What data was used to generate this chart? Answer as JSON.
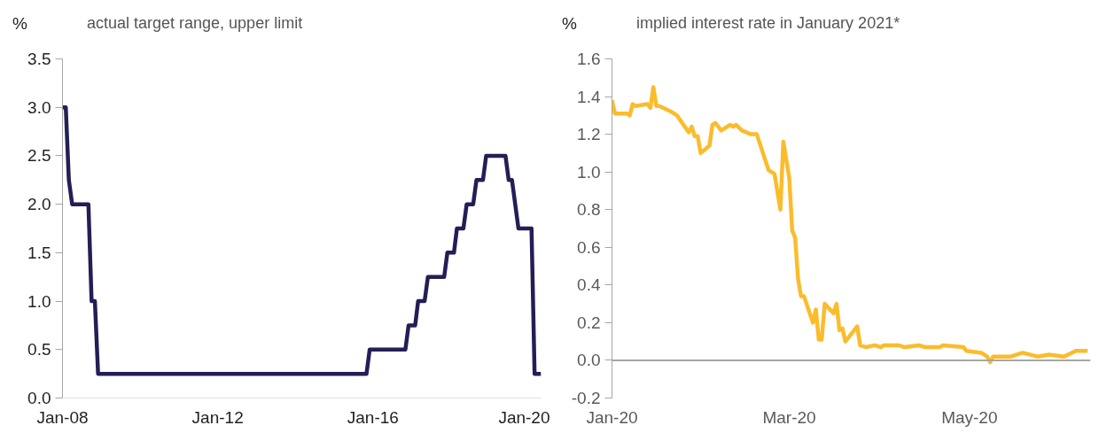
{
  "chart_data": [
    {
      "type": "line",
      "title": "actual target range, upper limit",
      "ylabel": "%",
      "grid": false,
      "xlim": [
        "2008-01",
        "2020-05"
      ],
      "ylim": [
        0,
        3.5
      ],
      "yticks": [
        {
          "value": 0,
          "label": "0.0"
        },
        {
          "value": 0.5,
          "label": "0.5"
        },
        {
          "value": 1,
          "label": "1.0"
        },
        1.5,
        {
          "value": 2,
          "label": "2.0"
        },
        2.5,
        {
          "value": 3,
          "label": "3.0"
        },
        3.5
      ],
      "xticks": [
        {
          "value": "2008-01",
          "label": "Jan-08"
        },
        {
          "value": "2012-01",
          "label": "Jan-12"
        },
        {
          "value": "2016-01",
          "label": "Jan-16"
        },
        {
          "value": "2020-01",
          "label": "Jan-20"
        }
      ],
      "series": [
        {
          "color": "#231f55",
          "x": [
            "2008-01",
            "2008-02",
            "2008-03",
            "2008-04",
            "2008-09",
            "2008-10",
            "2008-11",
            "2008-12",
            "2015-11",
            "2015-12",
            "2016-11",
            "2016-12",
            "2017-02",
            "2017-03",
            "2017-05",
            "2017-06",
            "2017-11",
            "2017-12",
            "2018-02",
            "2018-03",
            "2018-05",
            "2018-06",
            "2018-08",
            "2018-09",
            "2018-11",
            "2018-12",
            "2019-06",
            "2019-07",
            "2019-08",
            "2019-10",
            "2020-02",
            "2020-03",
            "2020-05"
          ],
          "values": [
            3.0,
            3.0,
            2.25,
            2.0,
            2.0,
            1.0,
            1.0,
            0.25,
            0.25,
            0.5,
            0.5,
            0.75,
            0.75,
            1.0,
            1.0,
            1.25,
            1.25,
            1.5,
            1.5,
            1.75,
            1.75,
            2.0,
            2.0,
            2.25,
            2.25,
            2.5,
            2.5,
            2.25,
            2.25,
            1.75,
            1.75,
            0.25,
            0.25
          ]
        }
      ]
    },
    {
      "type": "line",
      "title": "implied interest rate in January 2021*",
      "ylabel": "%",
      "grid": false,
      "xlim": [
        "2020-01-01",
        "2020-06-11"
      ],
      "ylim": [
        -0.2,
        1.6
      ],
      "yticks": [
        {
          "value": -0.2,
          "label": "-0.2"
        },
        {
          "value": 0,
          "label": "0.0"
        },
        0.2,
        0.4,
        0.6,
        0.8,
        {
          "value": 1,
          "label": "1.0"
        },
        1.2,
        1.4,
        1.6
      ],
      "xticks": [
        {
          "value": "2020-01-01",
          "label": "Jan-20"
        },
        {
          "value": "2020-03-01",
          "label": "Mar-20"
        },
        {
          "value": "2020-05-01",
          "label": "May-20"
        }
      ],
      "ref_lines": [
        {
          "axis": "y",
          "value": 0,
          "label": null,
          "color": "#a6a6a6"
        }
      ],
      "series": [
        {
          "color": "#fbbc2c",
          "x": [
            "2020-01-01",
            "2020-01-02",
            "2020-01-06",
            "2020-01-07",
            "2020-01-08",
            "2020-01-09",
            "2020-01-13",
            "2020-01-14",
            "2020-01-15",
            "2020-01-16",
            "2020-01-17",
            "2020-01-21",
            "2020-01-23",
            "2020-01-27",
            "2020-01-28",
            "2020-01-29",
            "2020-01-30",
            "2020-01-31",
            "2020-02-03",
            "2020-02-04",
            "2020-02-05",
            "2020-02-07",
            "2020-02-10",
            "2020-02-11",
            "2020-02-12",
            "2020-02-14",
            "2020-02-17",
            "2020-02-19",
            "2020-02-23",
            "2020-02-25",
            "2020-02-27",
            "2020-02-28",
            "2020-03-01",
            "2020-03-02",
            "2020-03-03",
            "2020-03-04",
            "2020-03-05",
            "2020-03-06",
            "2020-03-09",
            "2020-03-10",
            "2020-03-11",
            "2020-03-12",
            "2020-03-13",
            "2020-03-16",
            "2020-03-17",
            "2020-03-18",
            "2020-03-19",
            "2020-03-20",
            "2020-03-24",
            "2020-03-25",
            "2020-03-27",
            "2020-03-30",
            "2020-04-01",
            "2020-04-02",
            "2020-04-07",
            "2020-04-09",
            "2020-04-14",
            "2020-04-16",
            "2020-04-21",
            "2020-04-22",
            "2020-04-29",
            "2020-04-30",
            "2020-05-05",
            "2020-05-07",
            "2020-05-08",
            "2020-05-09",
            "2020-05-15",
            "2020-05-19",
            "2020-05-24",
            "2020-05-28",
            "2020-06-02",
            "2020-06-06",
            "2020-06-10"
          ],
          "values": [
            1.38,
            1.31,
            1.31,
            1.3,
            1.36,
            1.35,
            1.36,
            1.34,
            1.45,
            1.35,
            1.35,
            1.32,
            1.3,
            1.21,
            1.24,
            1.19,
            1.19,
            1.1,
            1.14,
            1.25,
            1.26,
            1.22,
            1.25,
            1.24,
            1.25,
            1.22,
            1.2,
            1.2,
            1.01,
            0.99,
            0.8,
            1.16,
            0.97,
            0.69,
            0.65,
            0.43,
            0.34,
            0.34,
            0.2,
            0.27,
            0.11,
            0.11,
            0.3,
            0.25,
            0.3,
            0.16,
            0.17,
            0.1,
            0.18,
            0.08,
            0.07,
            0.08,
            0.07,
            0.08,
            0.08,
            0.07,
            0.08,
            0.07,
            0.07,
            0.08,
            0.07,
            0.05,
            0.04,
            0.02,
            -0.01,
            0.02,
            0.02,
            0.04,
            0.02,
            0.03,
            0.02,
            0.05,
            0.05
          ]
        }
      ]
    }
  ]
}
